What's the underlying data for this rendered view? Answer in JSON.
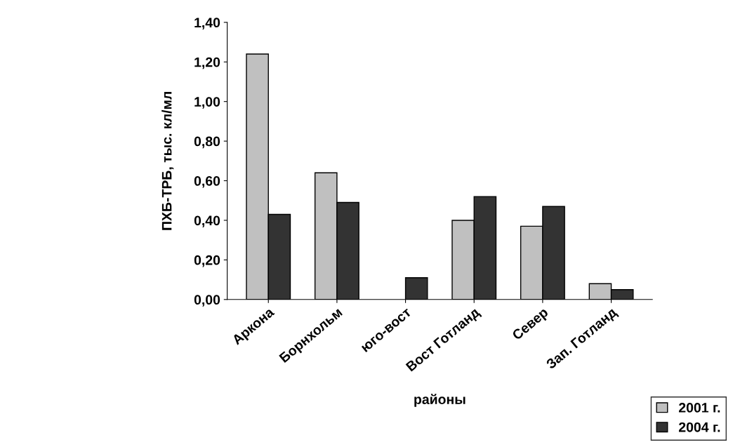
{
  "chart_data": {
    "type": "bar",
    "xlabel": "районы",
    "ylabel": "ПХБ-ТРБ, тыс. кл/мл",
    "categories": [
      "Аркона",
      "Борнхольм",
      "юго-вост",
      "Вост Готланд",
      "Север",
      "Зап. Готланд"
    ],
    "series": [
      {
        "name": "2001 г.",
        "color": "#c0c0c0",
        "values": [
          1.24,
          0.64,
          null,
          0.4,
          0.37,
          0.08
        ]
      },
      {
        "name": "2004 г.",
        "color": "#333333",
        "values": [
          0.43,
          0.49,
          0.11,
          0.52,
          0.47,
          0.05
        ]
      }
    ],
    "ylim": [
      0,
      1.4
    ],
    "yticks": [
      {
        "value": 0,
        "label": "0,00"
      },
      {
        "value": 0.2,
        "label": "0,20"
      },
      {
        "value": 0.4,
        "label": "0,40"
      },
      {
        "value": 0.6,
        "label": "0,60"
      },
      {
        "value": 0.8,
        "label": "0,80"
      },
      {
        "value": 1.0,
        "label": "1,00"
      },
      {
        "value": 1.2,
        "label": "1,20"
      },
      {
        "value": 1.4,
        "label": "1,40"
      }
    ],
    "grid": false,
    "legend": "bottom right"
  }
}
